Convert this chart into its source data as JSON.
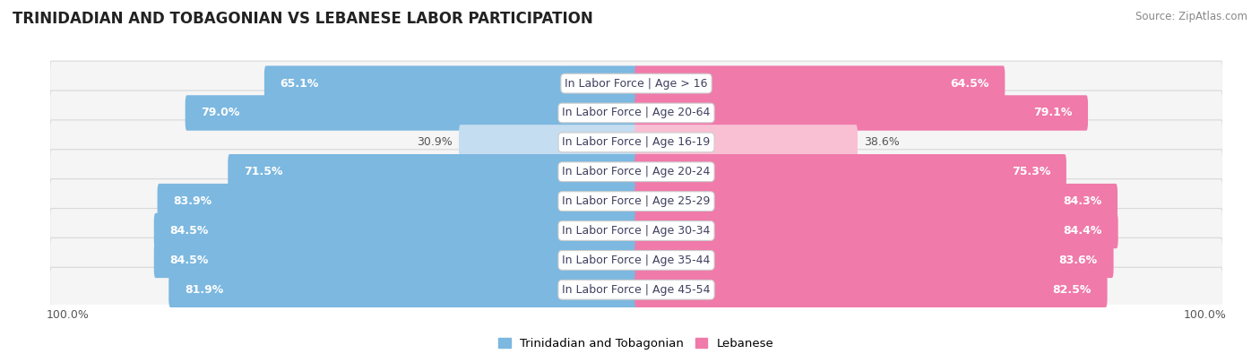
{
  "title": "TRINIDADIAN AND TOBAGONIAN VS LEBANESE LABOR PARTICIPATION",
  "source": "Source: ZipAtlas.com",
  "categories": [
    "In Labor Force | Age > 16",
    "In Labor Force | Age 20-64",
    "In Labor Force | Age 16-19",
    "In Labor Force | Age 20-24",
    "In Labor Force | Age 25-29",
    "In Labor Force | Age 30-34",
    "In Labor Force | Age 35-44",
    "In Labor Force | Age 45-54"
  ],
  "trinidadian_values": [
    65.1,
    79.0,
    30.9,
    71.5,
    83.9,
    84.5,
    84.5,
    81.9
  ],
  "lebanese_values": [
    64.5,
    79.1,
    38.6,
    75.3,
    84.3,
    84.4,
    83.6,
    82.5
  ],
  "trinidadian_color": "#7cb8e0",
  "lebanese_color": "#f07aaa",
  "trinidadian_light_color": "#c5ddf0",
  "lebanese_light_color": "#f9c0d4",
  "row_bg_even": "#f2f2f2",
  "row_bg_odd": "#f2f2f2",
  "background_color": "#ffffff",
  "max_value": 100.0,
  "label_fontsize": 9,
  "category_fontsize": 9,
  "title_fontsize": 12,
  "legend_fontsize": 9.5,
  "source_fontsize": 8.5
}
